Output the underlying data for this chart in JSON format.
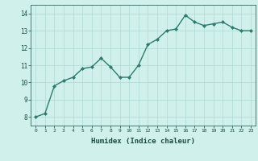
{
  "x": [
    0,
    1,
    2,
    3,
    4,
    5,
    6,
    7,
    8,
    9,
    10,
    11,
    12,
    13,
    14,
    15,
    16,
    17,
    18,
    19,
    20,
    21,
    22,
    23
  ],
  "y": [
    8.0,
    8.2,
    9.8,
    10.1,
    10.3,
    10.8,
    10.9,
    11.4,
    10.9,
    10.3,
    10.3,
    11.0,
    12.2,
    12.5,
    13.0,
    13.1,
    13.9,
    13.5,
    13.3,
    13.4,
    13.5,
    13.2,
    13.0,
    13.0
  ],
  "xlabel": "Humidex (Indice chaleur)",
  "ylim": [
    7.5,
    14.5
  ],
  "xlim": [
    -0.5,
    23.5
  ],
  "yticks": [
    8,
    9,
    10,
    11,
    12,
    13,
    14
  ],
  "xtick_labels": [
    "0",
    "1",
    "2",
    "3",
    "4",
    "5",
    "6",
    "7",
    "8",
    "9",
    "10",
    "11",
    "12",
    "13",
    "14",
    "15",
    "16",
    "17",
    "18",
    "19",
    "20",
    "21",
    "22",
    "23"
  ],
  "line_color": "#2d7b6e",
  "marker_color": "#2d7b6e",
  "bg_color": "#d0f0ec",
  "grid_color": "#b0d8d4",
  "axis_label_color": "#1a4a44",
  "tick_color": "#1a4a44",
  "marker": "D",
  "marker_size": 2,
  "linewidth": 1.0
}
